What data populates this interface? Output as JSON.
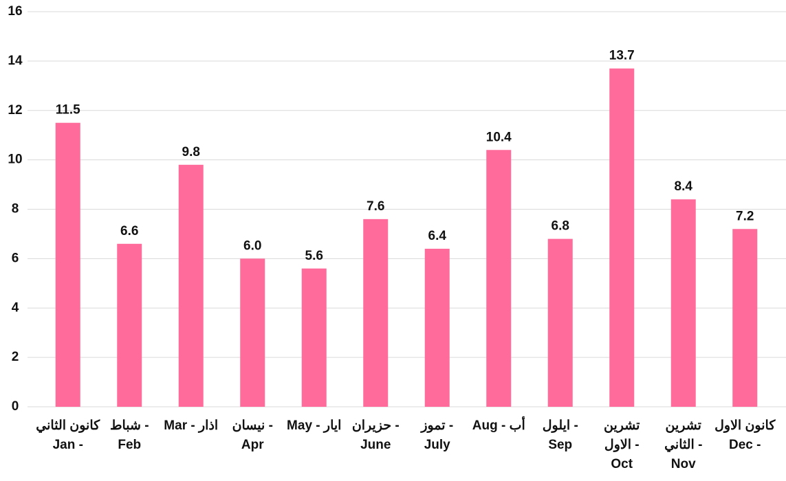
{
  "chart_data": {
    "type": "bar",
    "categories": [
      [
        "كانون الثاني",
        "Jan -"
      ],
      [
        "شباط -",
        "Feb"
      ],
      [
        "Mar - اذار"
      ],
      [
        "نيسان -",
        "Apr"
      ],
      [
        "May - ايار"
      ],
      [
        "حزيران -",
        "June"
      ],
      [
        "تموز -",
        "July"
      ],
      [
        "Aug - أب"
      ],
      [
        "ايلول -",
        "Sep"
      ],
      [
        "تشرين",
        "الاول -",
        "Oct"
      ],
      [
        "تشرين",
        "الثاني -",
        "Nov"
      ],
      [
        "كانون الاول",
        "Dec -"
      ]
    ],
    "values": [
      11.5,
      6.6,
      9.8,
      6.0,
      5.6,
      7.6,
      6.4,
      10.4,
      6.8,
      13.7,
      8.4,
      7.2
    ],
    "value_labels": [
      "11.5",
      "6.6",
      "9.8",
      "6.0",
      "5.6",
      "7.6",
      "6.4",
      "10.4",
      "6.8",
      "13.7",
      "8.4",
      "7.2"
    ],
    "color": "#ff6b9b",
    "ylim": [
      0,
      16
    ],
    "yticks": [
      0,
      2,
      4,
      6,
      8,
      10,
      12,
      14,
      16
    ],
    "grid": true
  }
}
